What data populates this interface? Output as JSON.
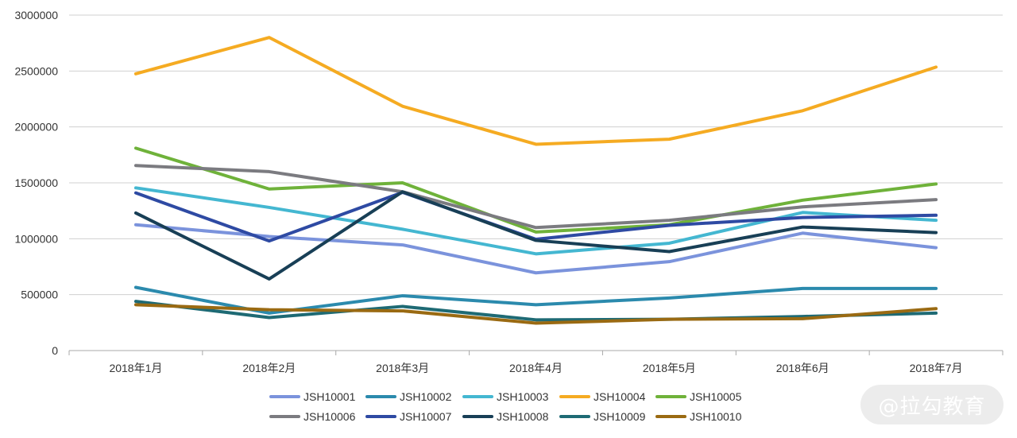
{
  "chart_data": {
    "type": "line",
    "categories": [
      "2018年1月",
      "2018年2月",
      "2018年3月",
      "2018年4月",
      "2018年5月",
      "2018年6月",
      "2018年7月"
    ],
    "ylim": [
      0,
      3000000
    ],
    "yticks": [
      0,
      500000,
      1000000,
      1500000,
      2000000,
      2500000,
      3000000
    ],
    "grid": true,
    "legend_position": "bottom",
    "series": [
      {
        "name": "JSH10001",
        "color": "#7b93dc",
        "values": [
          1125000,
          1020000,
          945000,
          695000,
          795000,
          1050000,
          920000
        ]
      },
      {
        "name": "JSH10002",
        "color": "#2b8aad",
        "values": [
          565000,
          335000,
          490000,
          410000,
          470000,
          555000,
          555000
        ]
      },
      {
        "name": "JSH10003",
        "color": "#44b7d1",
        "values": [
          1455000,
          1280000,
          1085000,
          865000,
          960000,
          1235000,
          1165000
        ]
      },
      {
        "name": "JSH10004",
        "color": "#f5ab22",
        "values": [
          2475000,
          2800000,
          2185000,
          1845000,
          1890000,
          2145000,
          2535000
        ]
      },
      {
        "name": "JSH10005",
        "color": "#6fb23a",
        "values": [
          1810000,
          1445000,
          1500000,
          1060000,
          1125000,
          1345000,
          1490000
        ]
      },
      {
        "name": "JSH10006",
        "color": "#7b7b80",
        "values": [
          1655000,
          1600000,
          1420000,
          1100000,
          1165000,
          1285000,
          1350000
        ]
      },
      {
        "name": "JSH10007",
        "color": "#2e4aa3",
        "values": [
          1410000,
          980000,
          1415000,
          995000,
          1120000,
          1190000,
          1210000
        ]
      },
      {
        "name": "JSH10008",
        "color": "#183f56",
        "values": [
          1230000,
          640000,
          1420000,
          985000,
          885000,
          1105000,
          1055000
        ]
      },
      {
        "name": "JSH10009",
        "color": "#1e6a74",
        "values": [
          440000,
          295000,
          395000,
          275000,
          280000,
          305000,
          335000
        ]
      },
      {
        "name": "JSH10010",
        "color": "#9a6a12",
        "values": [
          410000,
          365000,
          355000,
          245000,
          280000,
          285000,
          375000
        ]
      }
    ]
  },
  "watermark": {
    "text": "@拉勾教育"
  }
}
